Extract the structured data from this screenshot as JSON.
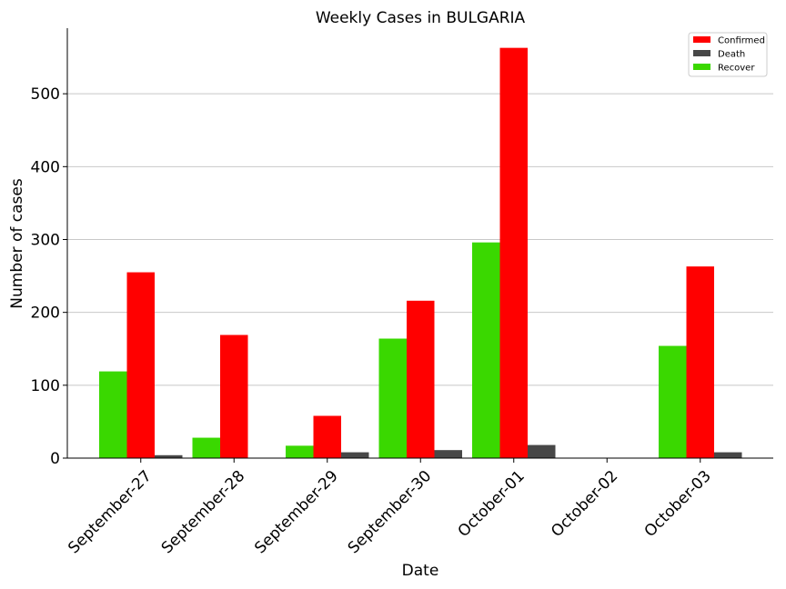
{
  "chart_data": {
    "type": "bar",
    "title": "Weekly Cases in BULGARIA",
    "xlabel": "Date",
    "ylabel": "Number of cases",
    "categories": [
      "September-27",
      "September-28",
      "September-29",
      "September-30",
      "October-01",
      "October-02",
      "October-03"
    ],
    "series": [
      {
        "name": "Recover",
        "color": "#3ad800",
        "values": [
          119,
          28,
          17,
          164,
          296,
          0,
          154
        ]
      },
      {
        "name": "Confirmed",
        "color": "#ff0000",
        "values": [
          255,
          169,
          58,
          216,
          563,
          0,
          263
        ]
      },
      {
        "name": "Death",
        "color": "#474747",
        "values": [
          4,
          0,
          8,
          11,
          18,
          0,
          8
        ]
      }
    ],
    "legend_order": [
      "Confirmed",
      "Death",
      "Recover"
    ],
    "legend_position": "top-right",
    "ylim": [
      0,
      590
    ],
    "yticks": [
      0,
      100,
      200,
      300,
      400,
      500
    ],
    "grid": "horizontal"
  }
}
